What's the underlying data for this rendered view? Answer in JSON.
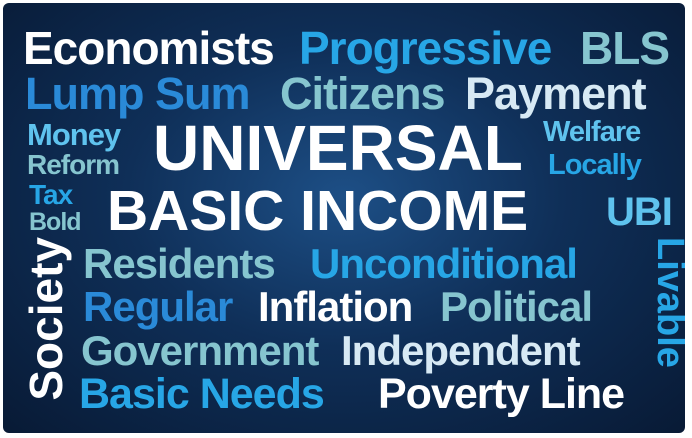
{
  "word_cloud": {
    "words": {
      "economists": "Economists",
      "progressive": "Progressive",
      "bls": "BLS",
      "lump_sum": "Lump Sum",
      "citizens": "Citizens",
      "payment": "Payment",
      "money": "Money",
      "reform": "Reform",
      "universal": "UNIVERSAL",
      "welfare": "Welfare",
      "locally": "Locally",
      "tax": "Tax",
      "bold": "Bold",
      "basic_income": "BASIC INCOME",
      "ubi": "UBI",
      "society": "Society",
      "residents": "Residents",
      "unconditional": "Unconditional",
      "livable": "Livable",
      "regular": "Regular",
      "inflation": "Inflation",
      "political": "Political",
      "government": "Government",
      "independent": "Independent",
      "basic_needs": "Basic Needs",
      "poverty_line": "Poverty Line"
    },
    "colors": {
      "background": "#0f2f58",
      "white": "#ffffff",
      "cyan": "#27a6e6",
      "sky": "#5fc3ee",
      "teal": "#86c5cf",
      "pale": "#d7e9f4",
      "blue": "#2a8ad8"
    }
  }
}
